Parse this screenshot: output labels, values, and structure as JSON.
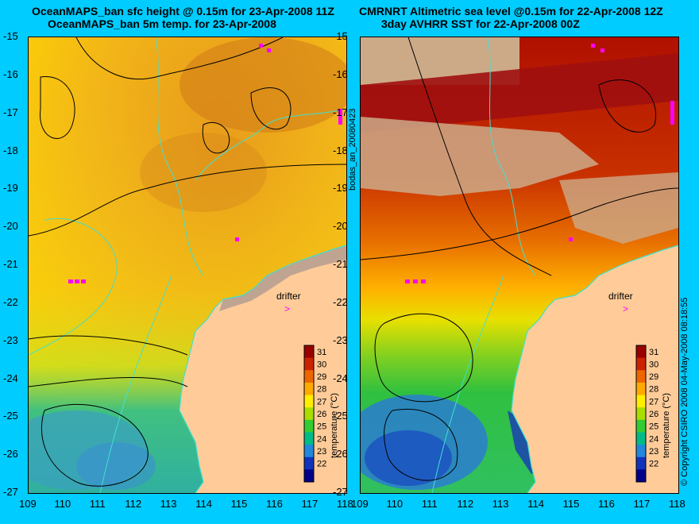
{
  "titles": {
    "left_line1": "OceanMAPS_ban sfc height @ 0.15m for 23-Apr-2008 11Z",
    "left_line2": "OceanMAPS_ban 5m temp. for 23-Apr-2008",
    "right_line1": "CMRNRT Altimetric sea level  @0.15m  for 22-Apr-2008 12Z",
    "right_line2": "3day AVHRR SST for 22-Apr-2008 00Z"
  },
  "axes": {
    "lat_ticks": [
      "-15",
      "-16",
      "-17",
      "-18",
      "-19",
      "-20",
      "-21",
      "-22",
      "-23",
      "-24",
      "-25",
      "-26",
      "-27"
    ],
    "lon_ticks": [
      "109",
      "110",
      "111",
      "112",
      "113",
      "114",
      "115",
      "116",
      "117",
      "118"
    ]
  },
  "colorbar": {
    "label": "temperature (°C)",
    "ticks": [
      "31",
      "30",
      "29",
      "28",
      "27",
      "26",
      "25",
      "24",
      "23",
      "22"
    ],
    "colors": [
      "#990000",
      "#cc2200",
      "#ee6600",
      "#ffaa00",
      "#ffee00",
      "#aadd00",
      "#33cc33",
      "#00bb88",
      "#2288dd",
      "#1133bb",
      "#000088"
    ]
  },
  "annotations": {
    "drifter_label": "drifter",
    "left_margin_text": "bodas_an_20080423",
    "right_margin_text": "© Copyright CSIRO 2008  04-May-2008 08:18:55"
  },
  "colors": {
    "background": "#00ccff",
    "land": "#ffcc99",
    "cloud": "#ccaa88",
    "coastline": "#40e0d0",
    "drifter": "#ff00ff"
  }
}
